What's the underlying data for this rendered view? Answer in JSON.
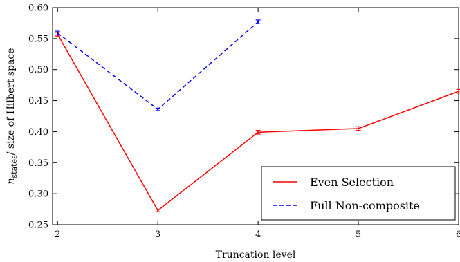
{
  "chart_data": {
    "type": "line",
    "title": "",
    "xlabel": "Truncation level",
    "ylabel": {
      "main": "n",
      "subscript": "states",
      "rest": "/ size of Hilbert space"
    },
    "xlim": [
      1.95,
      6.0
    ],
    "ylim": [
      0.25,
      0.6
    ],
    "x_ticks": [
      2,
      3,
      4,
      5,
      6
    ],
    "x_tick_labels": [
      "2",
      "3",
      "4",
      "5",
      "6"
    ],
    "y_ticks": [
      0.25,
      0.3,
      0.35,
      0.4,
      0.45,
      0.5,
      0.55,
      0.6
    ],
    "y_tick_labels": [
      "0.25",
      "0.30",
      "0.35",
      "0.40",
      "0.45",
      "0.50",
      "0.55",
      "0.60"
    ],
    "grid": false,
    "legend_position": "lower-right",
    "series": [
      {
        "name": "Even Selection",
        "color": "#ff0000",
        "linestyle": "solid",
        "x": [
          2,
          3,
          4,
          5,
          6
        ],
        "y": [
          0.557,
          0.273,
          0.399,
          0.405,
          0.465
        ],
        "yerr": [
          0.003,
          0.002,
          0.003,
          0.003,
          0.003
        ]
      },
      {
        "name": "Full Non-composite",
        "color": "#0000ff",
        "linestyle": "dashed",
        "x": [
          2,
          3,
          4
        ],
        "y": [
          0.559,
          0.436,
          0.577
        ],
        "yerr": [
          0.003,
          0.002,
          0.003
        ]
      }
    ]
  }
}
